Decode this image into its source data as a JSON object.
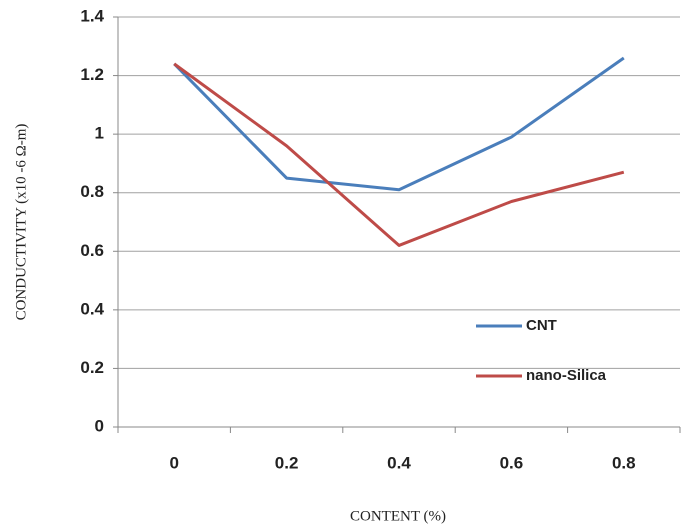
{
  "chart_data": {
    "type": "line",
    "x_label": "CONTENT (%)",
    "y_label": "CONDUCTIVITY  (x10 -6 Ω-m)",
    "categories": [
      "0",
      "0.2",
      "0.4",
      "0.6",
      "0.8"
    ],
    "series": [
      {
        "name": "CNT",
        "color": "#4a7ebb",
        "values": [
          1.24,
          0.85,
          0.81,
          0.99,
          1.26
        ]
      },
      {
        "name": "nano-Silica",
        "color": "#be4b48",
        "values": [
          1.24,
          0.96,
          0.62,
          0.77,
          0.87
        ]
      }
    ],
    "ylim": [
      0,
      1.4
    ],
    "yticks": [
      0,
      0.2,
      0.4,
      0.6,
      0.8,
      1,
      1.2,
      1.4
    ],
    "grid": true,
    "legend": "right"
  }
}
